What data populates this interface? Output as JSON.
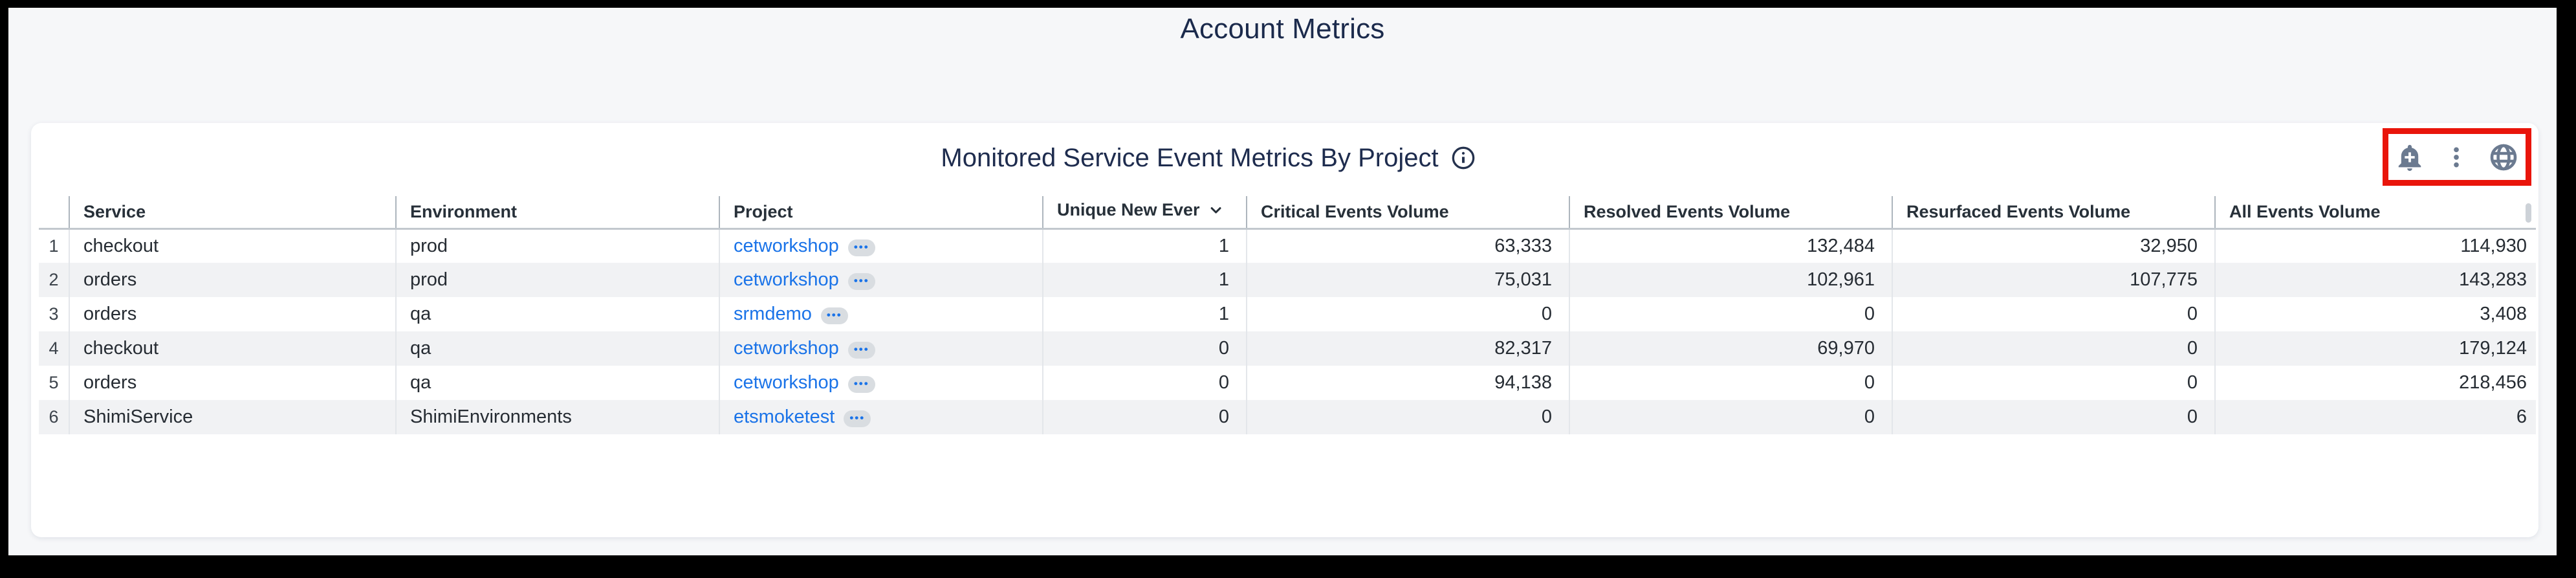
{
  "page": {
    "title": "Account Metrics"
  },
  "panel": {
    "title": "Monitored Service Event Metrics By Project",
    "toolbar": {
      "icons": [
        "add-alert-bell",
        "kebab-menu",
        "globe"
      ],
      "highlight_color": "#e9150b"
    }
  },
  "table": {
    "columns": [
      {
        "label": ""
      },
      {
        "label": "Service"
      },
      {
        "label": "Environment"
      },
      {
        "label": "Project"
      },
      {
        "label": "Unique New Ever",
        "sorted": "desc"
      },
      {
        "label": "Critical Events Volume"
      },
      {
        "label": "Resolved Events Volume"
      },
      {
        "label": "Resurfaced Events Volume"
      },
      {
        "label": "All Events Volume"
      }
    ],
    "project_badge_glyph": "•••",
    "rows": [
      {
        "num": "1",
        "service": "checkout",
        "environment": "prod",
        "project": "cetworkshop",
        "unique_new_ever": "1",
        "critical_events_volume": "63,333",
        "resolved_events_volume": "132,484",
        "resurfaced_events_volume": "32,950",
        "all_events_volume": "114,930"
      },
      {
        "num": "2",
        "service": "orders",
        "environment": "prod",
        "project": "cetworkshop",
        "unique_new_ever": "1",
        "critical_events_volume": "75,031",
        "resolved_events_volume": "102,961",
        "resurfaced_events_volume": "107,775",
        "all_events_volume": "143,283"
      },
      {
        "num": "3",
        "service": "orders",
        "environment": "qa",
        "project": "srmdemo",
        "unique_new_ever": "1",
        "critical_events_volume": "0",
        "resolved_events_volume": "0",
        "resurfaced_events_volume": "0",
        "all_events_volume": "3,408"
      },
      {
        "num": "4",
        "service": "checkout",
        "environment": "qa",
        "project": "cetworkshop",
        "unique_new_ever": "0",
        "critical_events_volume": "82,317",
        "resolved_events_volume": "69,970",
        "resurfaced_events_volume": "0",
        "all_events_volume": "179,124"
      },
      {
        "num": "5",
        "service": "orders",
        "environment": "qa",
        "project": "cetworkshop",
        "unique_new_ever": "0",
        "critical_events_volume": "94,138",
        "resolved_events_volume": "0",
        "resurfaced_events_volume": "0",
        "all_events_volume": "218,456"
      },
      {
        "num": "6",
        "service": "ShimiService",
        "environment": "ShimiEnvironments",
        "project": "etsmoketest",
        "unique_new_ever": "0",
        "critical_events_volume": "0",
        "resolved_events_volume": "0",
        "resurfaced_events_volume": "0",
        "all_events_volume": "6"
      }
    ]
  },
  "colors": {
    "page_background": "#f6f7f9",
    "title_navy": "#1b2a4c",
    "link_blue": "#1a73e8",
    "zebra_row": "#f1f2f4",
    "icon_slate": "#6b7a90",
    "annotation_red": "#e9150b"
  }
}
